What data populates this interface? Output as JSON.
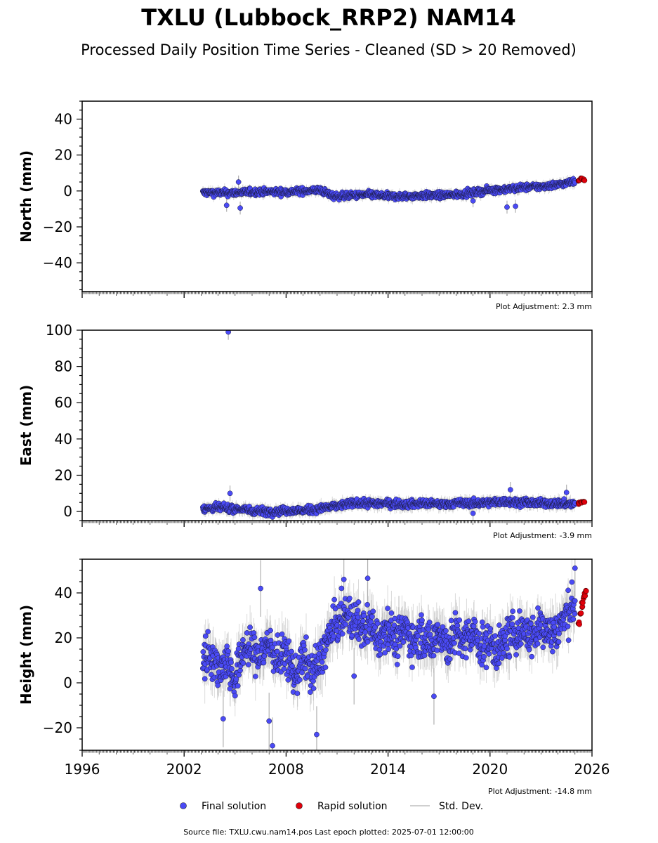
{
  "title": "TXLU (Lubbock_RRP2) NAM14",
  "subtitle": "Processed Daily Position Time Series - Cleaned (SD > 20 Removed)",
  "footer": "Source file: TXLU.cwu.nam14.pos  Last epoch plotted: 2025-07-01 12:00:00",
  "legend": [
    {
      "label": "Final solution",
      "color": "#4a4af5",
      "marker": "dot"
    },
    {
      "label": "Rapid solution",
      "color": "#e0000b",
      "marker": "dot"
    },
    {
      "label": "Std. Dev.",
      "color": "#cfcfcf",
      "marker": "line"
    }
  ],
  "colors": {
    "final": "#4a4af5",
    "rapid": "#e0000b",
    "stddev": "#b0b0b0",
    "axis": "#000000"
  },
  "chart_data": [
    {
      "type": "scatter",
      "ylabel": "North (mm)",
      "xlim": [
        1996,
        2026
      ],
      "ylim": [
        -56,
        50
      ],
      "yticks": [
        -40,
        -20,
        0,
        20,
        40
      ],
      "xticks": [
        1996,
        2002,
        2008,
        2014,
        2020,
        2026
      ],
      "show_xtick_labels": false,
      "adjustment": "Plot Adjustment: 2.3 mm",
      "series": [
        {
          "name": "Final solution",
          "x": [
            2003.1,
            2004.0,
            2005.0,
            2006.0,
            2007.0,
            2008.0,
            2009.0,
            2010.0,
            2010.8,
            2012.0,
            2013.0,
            2014.0,
            2015.0,
            2016.0,
            2017.0,
            2018.0,
            2019.0,
            2020.0,
            2021.0,
            2022.0,
            2023.0,
            2024.0,
            2025.0
          ],
          "y": [
            -1.0,
            -1.0,
            -1.0,
            -0.5,
            -0.5,
            -0.5,
            0.0,
            0.5,
            -3.0,
            -2.5,
            -2.0,
            -3.0,
            -3.0,
            -2.5,
            -2.5,
            -2.0,
            -1.0,
            0.5,
            1.0,
            2.0,
            2.5,
            3.5,
            5.5
          ],
          "outliers": [
            [
              2004.5,
              -8.0
            ],
            [
              2005.3,
              -9.5
            ],
            [
              2005.2,
              5.0
            ],
            [
              2021.0,
              -9.0
            ],
            [
              2021.5,
              -8.5
            ],
            [
              2019.0,
              -5.5
            ]
          ]
        },
        {
          "name": "Rapid solution",
          "x": [
            2025.2,
            2025.35,
            2025.5
          ],
          "y": [
            6.0,
            7.0,
            6.5
          ]
        }
      ]
    },
    {
      "type": "scatter",
      "ylabel": "East (mm)",
      "xlim": [
        1996,
        2026
      ],
      "ylim": [
        -5,
        100
      ],
      "yticks": [
        0,
        20,
        40,
        60,
        80,
        100
      ],
      "xticks": [
        1996,
        2002,
        2008,
        2014,
        2020,
        2026
      ],
      "show_xtick_labels": false,
      "adjustment": "Plot Adjustment: -3.9 mm",
      "series": [
        {
          "name": "Final solution",
          "x": [
            2003.1,
            2004.0,
            2005.0,
            2006.0,
            2007.0,
            2008.0,
            2009.0,
            2010.0,
            2011.0,
            2012.0,
            2013.0,
            2014.0,
            2015.0,
            2016.0,
            2017.0,
            2018.0,
            2019.0,
            2020.0,
            2021.0,
            2022.0,
            2023.0,
            2024.0,
            2025.0
          ],
          "y": [
            1.5,
            2.0,
            1.5,
            0.5,
            0.0,
            0.5,
            0.5,
            1.5,
            3.0,
            4.5,
            4.5,
            4.5,
            4.0,
            4.5,
            4.0,
            4.5,
            4.5,
            5.0,
            5.5,
            5.0,
            4.5,
            4.5,
            4.0
          ],
          "outliers": [
            [
              2004.6,
              99.0
            ],
            [
              2004.7,
              10.0
            ],
            [
              2021.2,
              12.0
            ],
            [
              2019.0,
              -1.0
            ],
            [
              2024.5,
              10.5
            ]
          ]
        },
        {
          "name": "Rapid solution",
          "x": [
            2025.2,
            2025.35,
            2025.5
          ],
          "y": [
            4.5,
            5.0,
            5.5
          ]
        }
      ]
    },
    {
      "type": "scatter",
      "ylabel": "Height (mm)",
      "xlim": [
        1996,
        2026
      ],
      "ylim": [
        -30,
        55
      ],
      "yticks": [
        -20,
        0,
        20,
        40
      ],
      "xticks": [
        1996,
        2002,
        2008,
        2014,
        2020,
        2026
      ],
      "xtick_labels": [
        "1996",
        "2002",
        "2008",
        "2014",
        "2020",
        "2026"
      ],
      "show_xtick_labels": true,
      "adjustment": "Plot Adjustment: -14.8 mm",
      "series": [
        {
          "name": "Final solution",
          "x": [
            2003.1,
            2003.5,
            2004.0,
            2004.5,
            2005.0,
            2005.5,
            2006.0,
            2006.5,
            2007.0,
            2007.5,
            2008.0,
            2008.5,
            2009.0,
            2009.5,
            2010.0,
            2010.5,
            2011.0,
            2011.5,
            2012.0,
            2012.5,
            2013.0,
            2013.5,
            2014.0,
            2014.5,
            2015.0,
            2015.5,
            2016.0,
            2016.5,
            2017.0,
            2017.5,
            2018.0,
            2018.5,
            2019.0,
            2019.5,
            2020.0,
            2020.5,
            2021.0,
            2021.5,
            2022.0,
            2022.5,
            2023.0,
            2023.5,
            2024.0,
            2024.5,
            2025.0
          ],
          "y": [
            10,
            14,
            6,
            10,
            0,
            16,
            14,
            12,
            18,
            10,
            14,
            2,
            12,
            4,
            10,
            20,
            27,
            30,
            28,
            24,
            26,
            20,
            26,
            18,
            24,
            18,
            22,
            16,
            24,
            16,
            22,
            18,
            22,
            16,
            18,
            14,
            20,
            22,
            24,
            20,
            26,
            22,
            24,
            30,
            36
          ],
          "outliers": [
            [
              2007.2,
              -28.0
            ],
            [
              2009.8,
              -23.0
            ],
            [
              2007.0,
              -17.0
            ],
            [
              2004.3,
              -16.0
            ],
            [
              2011.4,
              46.0
            ],
            [
              2012.8,
              46.5
            ],
            [
              2025.0,
              51.0
            ],
            [
              2006.5,
              42.0
            ],
            [
              2012.0,
              3.0
            ],
            [
              2016.7,
              -6.0
            ]
          ]
        },
        {
          "name": "Rapid solution",
          "x": [
            2025.2,
            2025.3,
            2025.4,
            2025.5,
            2025.6
          ],
          "y": [
            27,
            31,
            35,
            38,
            40
          ]
        }
      ]
    }
  ]
}
